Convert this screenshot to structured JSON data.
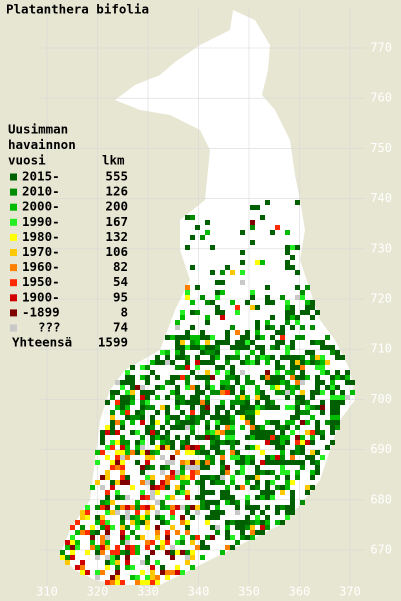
{
  "title": "Platanthera bifolia",
  "legend": {
    "heading": [
      "Uusimman",
      "havainnon",
      "vuosi"
    ],
    "count_heading": "lkm",
    "rows": [
      {
        "label": "2015-",
        "count": 555,
        "color": "#005f00"
      },
      {
        "label": "2010-",
        "count": 126,
        "color": "#008c00"
      },
      {
        "label": "2000-",
        "count": 200,
        "color": "#00bb00"
      },
      {
        "label": "1990-",
        "count": 167,
        "color": "#22ee22"
      },
      {
        "label": "1980-",
        "count": 132,
        "color": "#ffff00"
      },
      {
        "label": "1970-",
        "count": 106,
        "color": "#ffc800"
      },
      {
        "label": "1960-",
        "count": 82,
        "color": "#ff8000"
      },
      {
        "label": "1950-",
        "count": 54,
        "color": "#ff2a00"
      },
      {
        "label": "1900-",
        "count": 95,
        "color": "#d00000"
      },
      {
        "label": "-1899",
        "count": 8,
        "color": "#800000"
      },
      {
        "label": "???",
        "count": 74,
        "color": "#c8c8c8"
      }
    ],
    "total": {
      "label": "Yhteensä",
      "count": 1599
    }
  },
  "map": {
    "xticks": [
      310,
      320,
      330,
      340,
      350,
      360,
      370
    ],
    "yticks": [
      670,
      680,
      690,
      700,
      710,
      720,
      730,
      740,
      750,
      760,
      770
    ]
  }
}
